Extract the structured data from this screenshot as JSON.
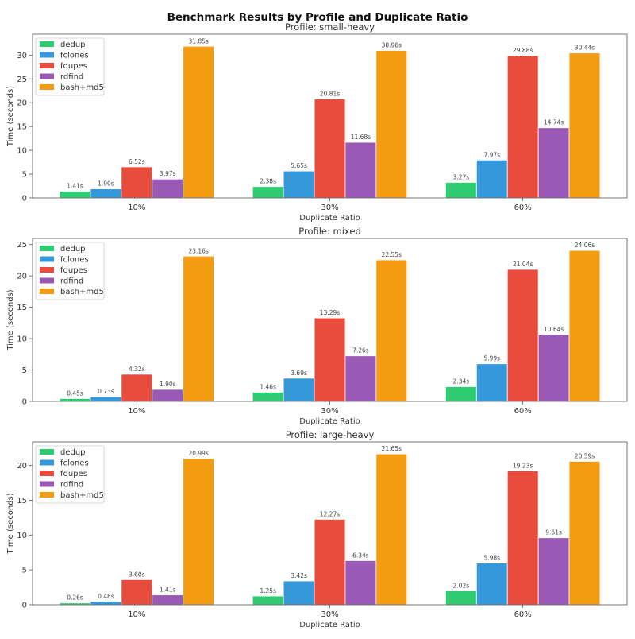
{
  "title": "Benchmark Results by Profile and Duplicate Ratio",
  "colors": {
    "dedup": "#2ecc71",
    "fclones": "#3498db",
    "fdupes": "#e74c3c",
    "rdfind": "#9b59b6",
    "bash+md5": "#f39c12"
  },
  "chart_data": [
    {
      "type": "bar",
      "title": "Profile: small-heavy",
      "xlabel": "Duplicate Ratio",
      "ylabel": "Time (seconds)",
      "categories": [
        "10%",
        "30%",
        "60%"
      ],
      "ylim": [
        0,
        34.4
      ],
      "yticks": [
        0,
        5,
        10,
        15,
        20,
        25,
        30
      ],
      "legend": "top-left",
      "grid": false,
      "series": [
        {
          "name": "dedup",
          "values": [
            1.41,
            2.38,
            3.27
          ],
          "labels": [
            "1.41s",
            "2.38s",
            "3.27s"
          ]
        },
        {
          "name": "fclones",
          "values": [
            1.9,
            5.65,
            7.97
          ],
          "labels": [
            "1.90s",
            "5.65s",
            "7.97s"
          ]
        },
        {
          "name": "fdupes",
          "values": [
            6.52,
            20.81,
            29.88
          ],
          "labels": [
            "6.52s",
            "20.81s",
            "29.88s"
          ]
        },
        {
          "name": "rdfind",
          "values": [
            3.97,
            11.68,
            14.74
          ],
          "labels": [
            "3.97s",
            "11.68s",
            "14.74s"
          ]
        },
        {
          "name": "bash+md5",
          "values": [
            31.85,
            30.96,
            30.44
          ],
          "labels": [
            "31.85s",
            "30.96s",
            "30.44s"
          ]
        }
      ]
    },
    {
      "type": "bar",
      "title": "Profile: mixed",
      "xlabel": "Duplicate Ratio",
      "ylabel": "Time (seconds)",
      "categories": [
        "10%",
        "30%",
        "60%"
      ],
      "ylim": [
        0,
        25.98
      ],
      "yticks": [
        0,
        5,
        10,
        15,
        20,
        25
      ],
      "legend": "top-left",
      "grid": false,
      "series": [
        {
          "name": "dedup",
          "values": [
            0.45,
            1.46,
            2.34
          ],
          "labels": [
            "0.45s",
            "1.46s",
            "2.34s"
          ]
        },
        {
          "name": "fclones",
          "values": [
            0.73,
            3.69,
            5.99
          ],
          "labels": [
            "0.73s",
            "3.69s",
            "5.99s"
          ]
        },
        {
          "name": "fdupes",
          "values": [
            4.32,
            13.29,
            21.04
          ],
          "labels": [
            "4.32s",
            "13.29s",
            "21.04s"
          ]
        },
        {
          "name": "rdfind",
          "values": [
            1.9,
            7.26,
            10.64
          ],
          "labels": [
            "1.90s",
            "7.26s",
            "10.64s"
          ]
        },
        {
          "name": "bash+md5",
          "values": [
            23.16,
            22.55,
            24.06
          ],
          "labels": [
            "23.16s",
            "22.55s",
            "24.06s"
          ]
        }
      ]
    },
    {
      "type": "bar",
      "title": "Profile: large-heavy",
      "xlabel": "Duplicate Ratio",
      "ylabel": "Time (seconds)",
      "categories": [
        "10%",
        "30%",
        "60%"
      ],
      "ylim": [
        0,
        23.38
      ],
      "yticks": [
        0,
        5,
        10,
        15,
        20
      ],
      "legend": "top-left",
      "grid": false,
      "series": [
        {
          "name": "dedup",
          "values": [
            0.26,
            1.25,
            2.02
          ],
          "labels": [
            "0.26s",
            "1.25s",
            "2.02s"
          ]
        },
        {
          "name": "fclones",
          "values": [
            0.48,
            3.42,
            5.98
          ],
          "labels": [
            "0.48s",
            "3.42s",
            "5.98s"
          ]
        },
        {
          "name": "fdupes",
          "values": [
            3.6,
            12.27,
            19.23
          ],
          "labels": [
            "3.60s",
            "12.27s",
            "19.23s"
          ]
        },
        {
          "name": "rdfind",
          "values": [
            1.41,
            6.34,
            9.61
          ],
          "labels": [
            "1.41s",
            "6.34s",
            "9.61s"
          ]
        },
        {
          "name": "bash+md5",
          "values": [
            20.99,
            21.65,
            20.59
          ],
          "labels": [
            "20.99s",
            "21.65s",
            "20.59s"
          ]
        }
      ]
    }
  ]
}
